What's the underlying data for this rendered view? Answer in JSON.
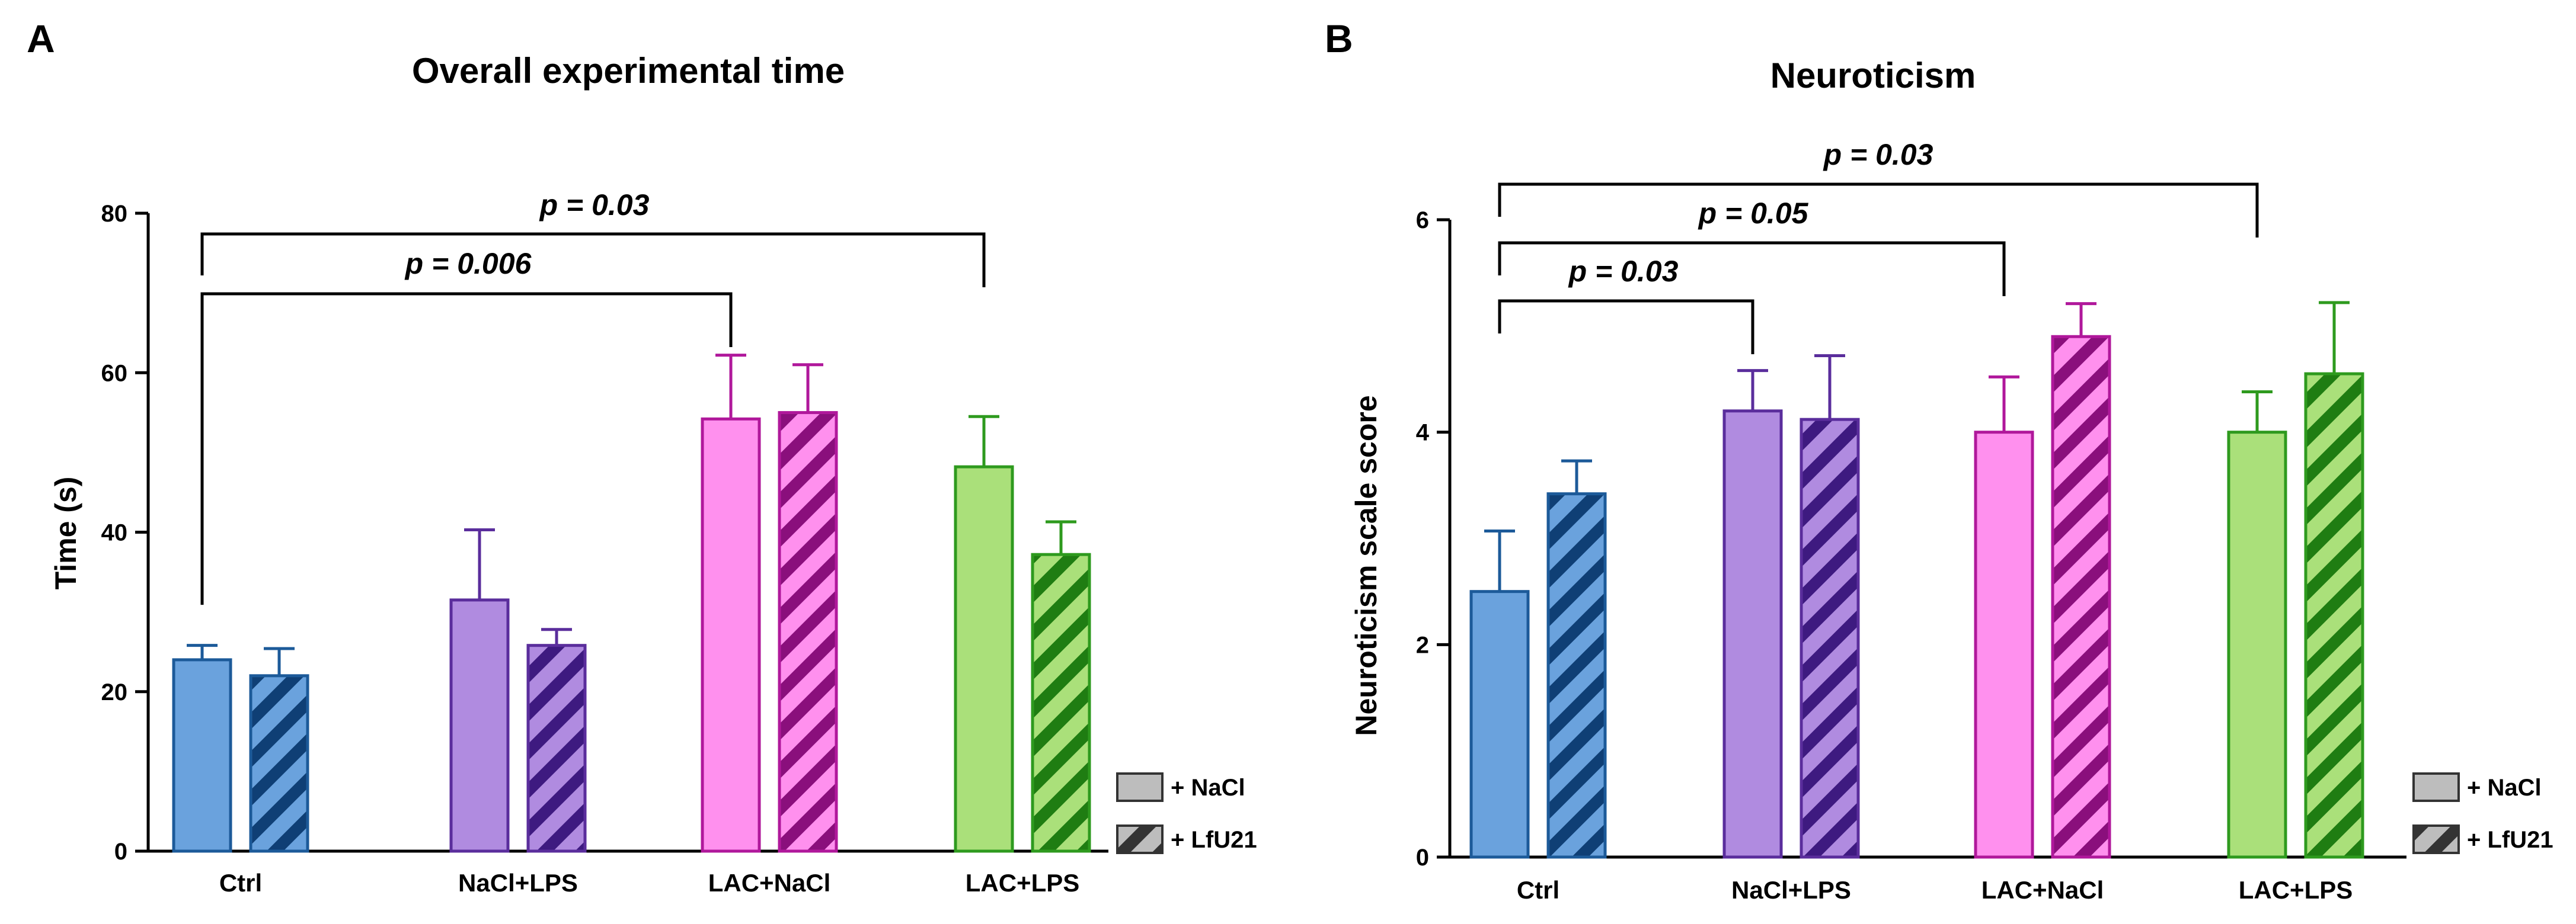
{
  "colors": {
    "Ctrl": {
      "fill": "#6aa2dd",
      "stroke": "#1c5a99",
      "hatch": "#0f3f75"
    },
    "NaCl+LPS": {
      "fill": "#b08be0",
      "stroke": "#5a2d9c",
      "hatch": "#3e1a80"
    },
    "LAC+NaCl": {
      "fill": "#ff90ee",
      "stroke": "#b0189b",
      "hatch": "#8a0f7c"
    },
    "LAC+LPS": {
      "fill": "#aae07a",
      "stroke": "#2e9a1e",
      "hatch": "#1f7d12"
    },
    "legend_fill": "#bdbdbd",
    "legend_hatch": "#333333"
  },
  "legend": {
    "nacl": "+ NaCl",
    "lfu21": "+ LfU21"
  },
  "chart_data": [
    {
      "panel": "A",
      "type": "bar",
      "title": "Overall experimental time",
      "xlabel": "",
      "ylabel": "Time (s)",
      "ylim": [
        0,
        80
      ],
      "yticks": [
        "0",
        "20",
        "40",
        "60",
        "80"
      ],
      "categories": [
        "Ctrl",
        "NaCl+LPS",
        "LAC+NaCl",
        "LAC+LPS"
      ],
      "series": [
        {
          "name": "+ NaCl",
          "values": [
            24.0,
            31.5,
            54.2,
            48.2
          ],
          "errors": [
            1.8,
            8.8,
            8.0,
            6.3
          ]
        },
        {
          "name": "+ LfU21",
          "values": [
            22.0,
            25.8,
            55.0,
            37.2
          ],
          "errors": [
            3.4,
            2.0,
            6.0,
            4.1
          ]
        }
      ],
      "comparisons": [
        {
          "label": "p = 0.006",
          "from": "Ctrl",
          "to": "LAC+NaCl"
        },
        {
          "label": "p = 0.03",
          "from": "Ctrl",
          "to": "LAC+LPS"
        }
      ]
    },
    {
      "panel": "B",
      "type": "bar",
      "title": "Neuroticism",
      "xlabel": "",
      "ylabel": "Neuroticism scale score",
      "ylim": [
        0,
        6
      ],
      "yticks": [
        "0",
        "2",
        "4",
        "6"
      ],
      "categories": [
        "Ctrl",
        "NaCl+LPS",
        "LAC+NaCl",
        "LAC+LPS"
      ],
      "series": [
        {
          "name": "+ NaCl",
          "values": [
            2.5,
            4.2,
            4.0,
            4.0
          ],
          "errors": [
            0.57,
            0.38,
            0.52,
            0.38
          ]
        },
        {
          "name": "+ LfU21",
          "values": [
            3.42,
            4.12,
            4.9,
            4.55
          ],
          "errors": [
            0.31,
            0.6,
            0.31,
            0.67
          ]
        }
      ],
      "comparisons": [
        {
          "label": "p = 0.03",
          "from": "Ctrl",
          "to": "NaCl+LPS"
        },
        {
          "label": "p = 0.05",
          "from": "Ctrl",
          "to": "LAC+NaCl"
        },
        {
          "label": "p = 0.03",
          "from": "Ctrl",
          "to": "LAC+LPS"
        }
      ]
    }
  ]
}
